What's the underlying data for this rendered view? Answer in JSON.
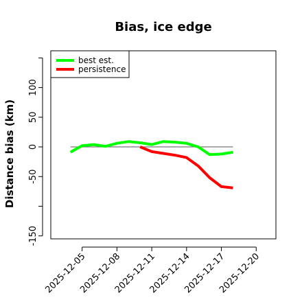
{
  "chart_data": {
    "type": "line",
    "title": "Bias, ice edge",
    "ylabel": "Distance bias (km)",
    "xlabel": "",
    "ylim": [
      -155,
      162
    ],
    "yticks": [
      -150,
      -50,
      0,
      50,
      100
    ],
    "y_minor_ticks": [
      -100,
      150
    ],
    "x_tick_labels": [
      "2025-12-05",
      "2025-12-08",
      "2025-12-11",
      "2025-12-14",
      "2025-12-17",
      "2025-12-20"
    ],
    "x_tick_positions": [
      5,
      8,
      11,
      14,
      17,
      20
    ],
    "x_range_days": [
      2.3,
      21.7
    ],
    "zero_line": true,
    "grid": false,
    "legend_position": "top-left",
    "series": [
      {
        "name": "best est.",
        "color": "#00ff00",
        "x": [
          4,
          5,
          6,
          7,
          8,
          9,
          10,
          11,
          12,
          13,
          14,
          15,
          16,
          17,
          18
        ],
        "values": [
          -9,
          2,
          4,
          1,
          6,
          9,
          7,
          4,
          9,
          8,
          6,
          0,
          -13,
          -12,
          -9
        ]
      },
      {
        "name": "persistence",
        "color": "#ff0000",
        "x": [
          10,
          11,
          12,
          13,
          14,
          15,
          16,
          17,
          18
        ],
        "values": [
          0,
          -8,
          -11,
          -14,
          -18,
          -32,
          -52,
          -67,
          -69
        ]
      }
    ]
  }
}
